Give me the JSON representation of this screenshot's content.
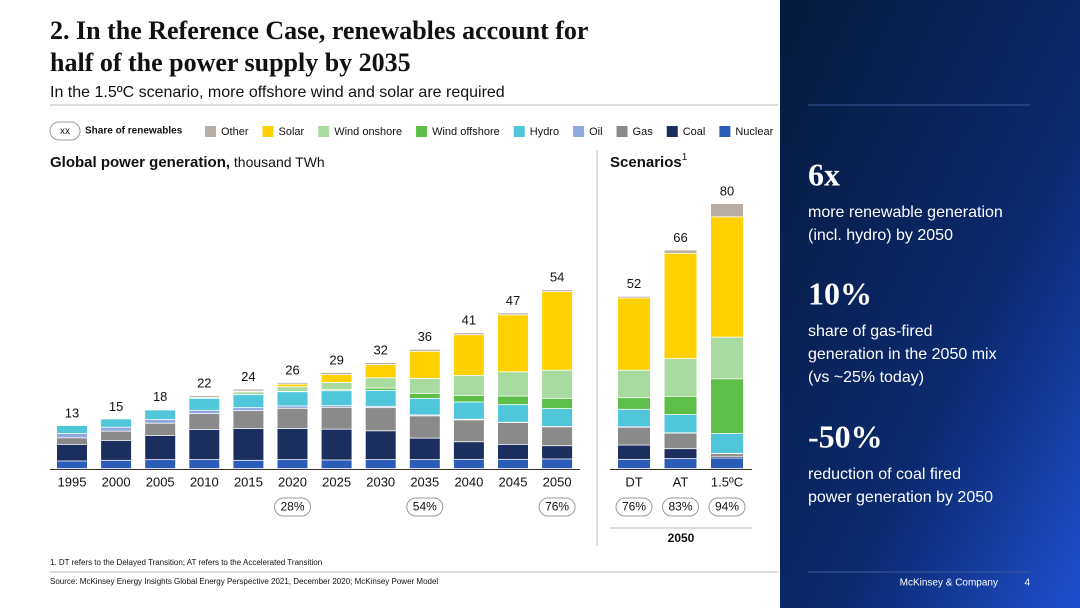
{
  "slide": {
    "title_line1": "2. In the Reference Case, renewables account for",
    "title_line2": "half of the power supply by 2035",
    "subtitle": "In the 1.5ºC scenario, more offshore wind and solar are required",
    "key_symbol": "xx",
    "key_label": "Share of renewables",
    "left_title": "Global power generation,",
    "left_unit": " thousand TWh",
    "right_title": "Scenarios",
    "right_sup": "1",
    "right_bottom": "2050",
    "footnote": "1.    DT refers to the Delayed Transition; AT refers to the Accelerated Transition",
    "source": "Source: McKinsey Energy Insights Global Energy Perspective 2021, December 2020; McKinsey Power Model",
    "company": "McKinsey & Company",
    "page": "4"
  },
  "callouts": [
    {
      "big": "6x",
      "lines": [
        "more renewable generation",
        "(incl. hydro) by 2050"
      ]
    },
    {
      "big": "10%",
      "lines": [
        "share of gas-fired",
        "generation in the 2050 mix",
        "(vs ~25% today)"
      ]
    },
    {
      "big": "-50%",
      "lines": [
        "reduction of coal fired",
        "power generation by 2050"
      ]
    }
  ],
  "chart_data": [
    {
      "type": "stacked_bar",
      "ylim": [
        0,
        80
      ],
      "categories": [
        "1995",
        "2000",
        "2005",
        "2010",
        "2015",
        "2020",
        "2025",
        "2030",
        "2035",
        "2040",
        "2045",
        "2050"
      ],
      "series": [
        {
          "name": "Nuclear",
          "color": "#2b5cb8",
          "values": [
            2.3,
            2.5,
            2.7,
            2.7,
            2.5,
            2.7,
            2.6,
            2.7,
            2.7,
            2.8,
            2.8,
            2.9
          ]
        },
        {
          "name": "Coal",
          "color": "#1b2e5e",
          "values": [
            5,
            6,
            7.3,
            9.1,
            9.6,
            9.4,
            9.3,
            8.7,
            6.5,
            5.3,
            4.5,
            4.0
          ]
        },
        {
          "name": "Gas",
          "color": "#8a8a8a",
          "values": [
            2,
            2.8,
            3.7,
            4.8,
            5.4,
            6.1,
            6.6,
            7.0,
            6.7,
            6.6,
            6.6,
            5.7
          ]
        },
        {
          "name": "Oil",
          "color": "#8ea9e0",
          "values": [
            1.3,
            1.2,
            1.1,
            1.0,
            0.9,
            0.7,
            0.5,
            0.4,
            0.3,
            0.2,
            0.1,
            0.1
          ]
        },
        {
          "name": "Hydro",
          "color": "#4fc6d9",
          "values": [
            2.4,
            2.5,
            2.9,
            3.6,
            3.9,
            4.3,
            4.5,
            4.8,
            5.0,
            5.2,
            5.3,
            5.4
          ]
        },
        {
          "name": "Wind offshore",
          "color": "#5dbf49",
          "values": [
            0,
            0,
            0,
            0,
            0.05,
            0.1,
            0.3,
            0.7,
            1.5,
            2.0,
            2.6,
            3.1
          ]
        },
        {
          "name": "Wind onshore",
          "color": "#a8dba0",
          "values": [
            0,
            0,
            0.1,
            0.3,
            0.8,
            1.4,
            2.2,
            3.1,
            4.5,
            6.0,
            7.3,
            8.5
          ]
        },
        {
          "name": "Solar",
          "color": "#ffd100",
          "values": [
            0,
            0,
            0,
            0,
            0.25,
            0.8,
            2.4,
            4.0,
            8.2,
            12.3,
            17.2,
            23.7
          ]
        },
        {
          "name": "Other",
          "color": "#b7ada4",
          "values": [
            0,
            0,
            0.2,
            0.5,
            0.6,
            0.5,
            0.6,
            0.6,
            0.6,
            0.6,
            0.6,
            0.6
          ]
        }
      ],
      "totals": [
        13,
        15,
        18,
        22,
        24,
        26,
        29,
        32,
        36,
        41,
        47,
        54
      ],
      "renewable_share": [
        null,
        null,
        null,
        null,
        null,
        28,
        null,
        null,
        54,
        null,
        null,
        76
      ],
      "renewable_share_labels": [
        null,
        null,
        null,
        null,
        null,
        "28%",
        null,
        null,
        "54%",
        null,
        null,
        "76%"
      ]
    },
    {
      "type": "stacked_bar",
      "ylim": [
        0,
        80
      ],
      "categories": [
        "DT",
        "AT",
        "1.5ºC"
      ],
      "series": [
        {
          "color": "#2b5cb8",
          "values": [
            2.8,
            3.0,
            3.2
          ]
        },
        {
          "color": "#1b2e5e",
          "values": [
            4.3,
            3.0,
            0.5
          ]
        },
        {
          "color": "#8a8a8a",
          "values": [
            5.4,
            4.7,
            0.8
          ]
        },
        {
          "color": "#8ea9e0",
          "values": [
            0.1,
            0.1,
            0.1
          ]
        },
        {
          "color": "#4fc6d9",
          "values": [
            5.3,
            5.5,
            6.0
          ]
        },
        {
          "color": "#5dbf49",
          "values": [
            3.5,
            5.5,
            16.5
          ]
        },
        {
          "color": "#a8dba0",
          "values": [
            8.3,
            11.4,
            12.6
          ]
        },
        {
          "color": "#ffd100",
          "values": [
            21.8,
            31.8,
            36.3
          ]
        },
        {
          "color": "#b7ada4",
          "values": [
            0.5,
            1.0,
            4.0
          ]
        }
      ],
      "totals": [
        52,
        66,
        80
      ],
      "renewable_share": [
        76,
        83,
        94
      ],
      "renewable_share_labels": [
        "76%",
        "83%",
        "94%"
      ]
    }
  ]
}
